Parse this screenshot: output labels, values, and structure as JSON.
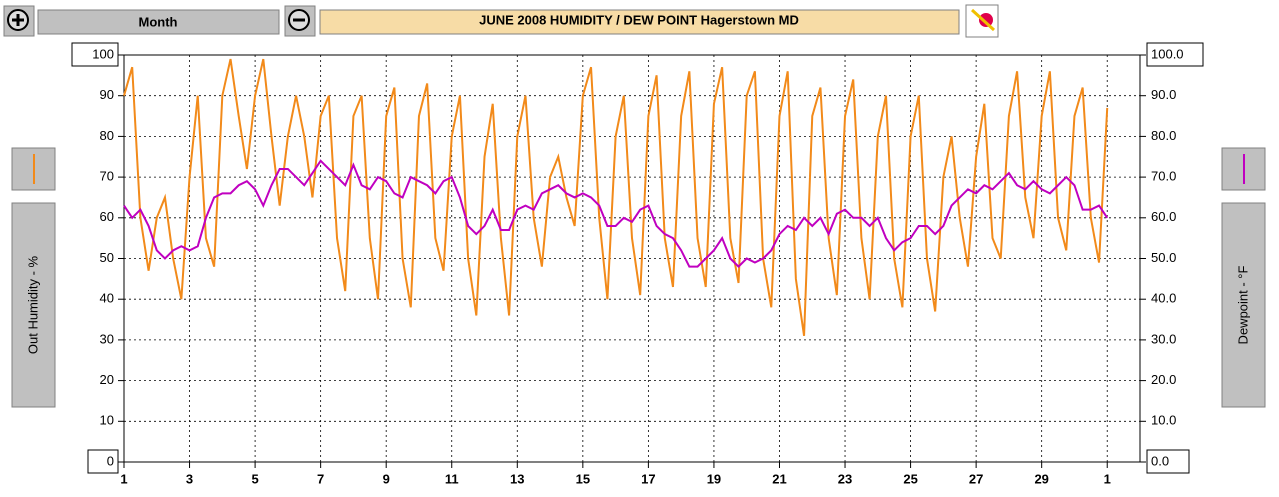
{
  "chart_data": {
    "type": "line",
    "title": "JUNE  2008    HUMIDITY / DEW POINT  Hagerstown MD",
    "period": "Month",
    "ylabel": "Out Humidity - %",
    "y2label": "Dewpoint - °F",
    "xlim": [
      0,
      31
    ],
    "xticks": [
      {
        "value": 0,
        "label": "1"
      },
      {
        "value": 2,
        "label": "3"
      },
      {
        "value": 4,
        "label": "5"
      },
      {
        "value": 6,
        "label": "7"
      },
      {
        "value": 8,
        "label": "9"
      },
      {
        "value": 10,
        "label": "11"
      },
      {
        "value": 12,
        "label": "13"
      },
      {
        "value": 14,
        "label": "15"
      },
      {
        "value": 16,
        "label": "17"
      },
      {
        "value": 18,
        "label": "19"
      },
      {
        "value": 20,
        "label": "21"
      },
      {
        "value": 22,
        "label": "23"
      },
      {
        "value": 24,
        "label": "25"
      },
      {
        "value": 26,
        "label": "27"
      },
      {
        "value": 28,
        "label": "29"
      },
      {
        "value": 30,
        "label": "1"
      }
    ],
    "ylim": [
      0,
      100
    ],
    "yticks": [
      0,
      10,
      20,
      30,
      40,
      50,
      60,
      70,
      80,
      90,
      100
    ],
    "y2lim": [
      0,
      100
    ],
    "y2ticks": [
      {
        "value": 0,
        "label": "0.0"
      },
      {
        "value": 10,
        "label": "10.0"
      },
      {
        "value": 20,
        "label": "20.0"
      },
      {
        "value": 30,
        "label": "30.0"
      },
      {
        "value": 40,
        "label": "40.0"
      },
      {
        "value": 50,
        "label": "50.0"
      },
      {
        "value": 60,
        "label": "60.0"
      },
      {
        "value": 70,
        "label": "70.0"
      },
      {
        "value": 80,
        "label": "80.0"
      },
      {
        "value": 90,
        "label": "90.0"
      },
      {
        "value": 100,
        "label": "100.0"
      }
    ],
    "grid": true,
    "x": [
      0,
      0.25,
      0.5,
      0.75,
      1,
      1.25,
      1.5,
      1.75,
      2,
      2.25,
      2.5,
      2.75,
      3,
      3.25,
      3.5,
      3.75,
      4,
      4.25,
      4.5,
      4.75,
      5,
      5.25,
      5.5,
      5.75,
      6,
      6.25,
      6.5,
      6.75,
      7,
      7.25,
      7.5,
      7.75,
      8,
      8.25,
      8.5,
      8.75,
      9,
      9.25,
      9.5,
      9.75,
      10,
      10.25,
      10.5,
      10.75,
      11,
      11.25,
      11.5,
      11.75,
      12,
      12.25,
      12.5,
      12.75,
      13,
      13.25,
      13.5,
      13.75,
      14,
      14.25,
      14.5,
      14.75,
      15,
      15.25,
      15.5,
      15.75,
      16,
      16.25,
      16.5,
      16.75,
      17,
      17.25,
      17.5,
      17.75,
      18,
      18.25,
      18.5,
      18.75,
      19,
      19.25,
      19.5,
      19.75,
      20,
      20.25,
      20.5,
      20.75,
      21,
      21.25,
      21.5,
      21.75,
      22,
      22.25,
      22.5,
      22.75,
      23,
      23.25,
      23.5,
      23.75,
      24,
      24.25,
      24.5,
      24.75,
      25,
      25.25,
      25.5,
      25.75,
      26,
      26.25,
      26.5,
      26.75,
      27,
      27.25,
      27.5,
      27.75,
      28,
      28.25,
      28.5,
      28.75,
      29,
      29.25,
      29.5,
      29.75,
      30
    ],
    "series": [
      {
        "name": "Out Humidity",
        "color": "#f28a1a",
        "axis": "y",
        "values": [
          90,
          97,
          60,
          47,
          60,
          65,
          50,
          40,
          70,
          90,
          55,
          48,
          90,
          99,
          85,
          72,
          90,
          99,
          80,
          63,
          80,
          90,
          80,
          65,
          85,
          90,
          55,
          42,
          85,
          90,
          55,
          40,
          85,
          92,
          50,
          38,
          85,
          93,
          55,
          47,
          80,
          90,
          50,
          36,
          75,
          88,
          55,
          36,
          80,
          90,
          60,
          48,
          70,
          75,
          65,
          58,
          90,
          97,
          60,
          40,
          80,
          90,
          55,
          41,
          85,
          95,
          55,
          43,
          85,
          96,
          55,
          43,
          88,
          97,
          55,
          44,
          90,
          96,
          50,
          38,
          85,
          96,
          45,
          31,
          85,
          92,
          55,
          41,
          85,
          94,
          55,
          40,
          80,
          90,
          50,
          38,
          80,
          90,
          50,
          37,
          70,
          80,
          60,
          48,
          75,
          88,
          55,
          50,
          85,
          96,
          65,
          55,
          85,
          96,
          60,
          52,
          85,
          92,
          60,
          49,
          87
        ]
      },
      {
        "name": "Dewpoint",
        "color": "#c000c0",
        "axis": "y2",
        "values": [
          63,
          60,
          62,
          58,
          52,
          50,
          52,
          53,
          52,
          53,
          60,
          65,
          66,
          66,
          68,
          69,
          67,
          63,
          68,
          72,
          72,
          70,
          68,
          71,
          74,
          72,
          70,
          68,
          73,
          68,
          67,
          70,
          69,
          66,
          65,
          70,
          69,
          68,
          66,
          69,
          70,
          65,
          58,
          56,
          58,
          62,
          57,
          57,
          62,
          63,
          62,
          66,
          67,
          68,
          66,
          65,
          66,
          65,
          63,
          58,
          58,
          60,
          59,
          62,
          63,
          58,
          56,
          55,
          52,
          48,
          48,
          50,
          52,
          55,
          50,
          48,
          50,
          49,
          50,
          52,
          56,
          58,
          57,
          60,
          58,
          60,
          56,
          61,
          62,
          60,
          60,
          58,
          60,
          55,
          52,
          54,
          55,
          58,
          58,
          56,
          58,
          63,
          65,
          67,
          66,
          68,
          67,
          69,
          71,
          68,
          67,
          69,
          67,
          66,
          68,
          70,
          68,
          62,
          62,
          63,
          60
        ]
      }
    ]
  }
}
